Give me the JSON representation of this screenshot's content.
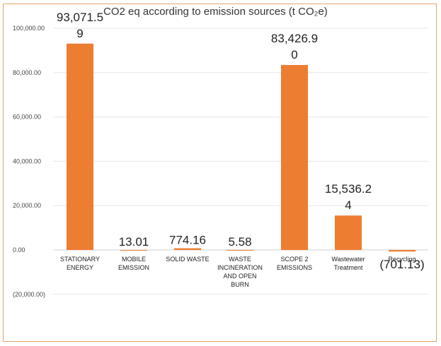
{
  "chart_data": {
    "type": "bar",
    "title": "CO2 eq according to emission sources (t CO₂e)",
    "xlabel": "",
    "ylabel": "",
    "ylim": [
      -20000,
      100000
    ],
    "yticks": [
      100000,
      80000,
      60000,
      40000,
      20000,
      0,
      -20000
    ],
    "ytick_labels": [
      "100,000.00",
      "80,000.00",
      "60,000.00",
      "40,000.00",
      "20,000.00",
      "0.00",
      "(20,000.00)"
    ],
    "categories": [
      [
        "STATIONARY",
        "ENERGY"
      ],
      [
        "MOBILE",
        "EMISSION"
      ],
      [
        "SOLID WASTE"
      ],
      [
        "WASTE",
        "INCINERATION",
        "AND OPEN",
        "BURN"
      ],
      [
        "SCOPE 2",
        "EMISSIONS"
      ],
      [
        "Wastewater",
        "Treatment"
      ],
      [
        "Recycling"
      ]
    ],
    "values": [
      93071.59,
      13.01,
      774.16,
      5.58,
      83426.9,
      15536.24,
      -701.13
    ],
    "data_labels": [
      [
        "93,071.5",
        "9"
      ],
      [
        "13.01"
      ],
      [
        "774.16"
      ],
      [
        "5.58"
      ],
      [
        "83,426.9",
        "0"
      ],
      [
        "15,536.2",
        "4"
      ],
      [
        "(701.13)"
      ]
    ],
    "bar_color": "#ed7d31",
    "grid": true,
    "legend": "none"
  }
}
